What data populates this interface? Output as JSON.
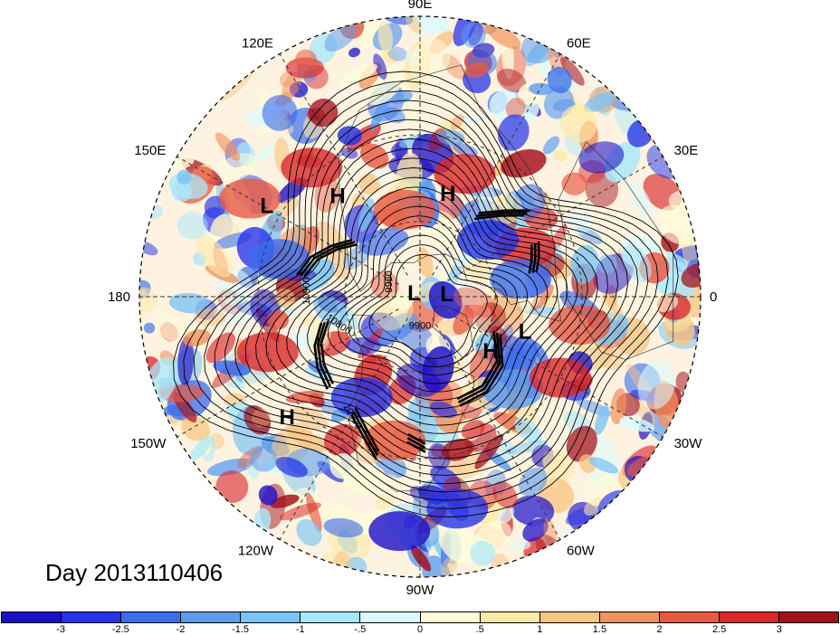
{
  "map": {
    "type": "north-polar-stereographic",
    "longitude_labels": [
      {
        "text": "90E",
        "lon": 90
      },
      {
        "text": "60E",
        "lon": 60
      },
      {
        "text": "30E",
        "lon": 30
      },
      {
        "text": "0",
        "lon": 0
      },
      {
        "text": "30W",
        "lon": -30
      },
      {
        "text": "60W",
        "lon": -60
      },
      {
        "text": "90W",
        "lon": -90
      },
      {
        "text": "120W",
        "lon": -120
      },
      {
        "text": "150W",
        "lon": -150
      },
      {
        "text": "180",
        "lon": 180
      },
      {
        "text": "150E",
        "lon": 150
      },
      {
        "text": "120E",
        "lon": 120
      }
    ],
    "pressure_centers": [
      {
        "type": "H",
        "lon": 75,
        "lat": 48
      },
      {
        "type": "L",
        "lon": 149,
        "lat": 25
      },
      {
        "type": "H",
        "lon": 129,
        "lat": 40
      },
      {
        "type": "L",
        "lon": 144,
        "lat": 87
      },
      {
        "type": "L",
        "lon": 8,
        "lat": 79
      },
      {
        "type": "H",
        "lon": -37,
        "lat": 55
      },
      {
        "type": "L",
        "lon": -18,
        "lat": 47
      },
      {
        "type": "H",
        "lon": -138,
        "lat": 25
      }
    ],
    "contour_labels": [
      {
        "text": "10900",
        "lon": 177,
        "lat": 47,
        "rotate": -90
      },
      {
        "text": "9960",
        "lon": 152,
        "lat": 77,
        "rotate": -90
      },
      {
        "text": "10800",
        "lon": -160,
        "lat": 55,
        "rotate": 35
      },
      {
        "text": "9900",
        "lon": -90,
        "lat": 77,
        "rotate": 0
      },
      {
        "text": "10900",
        "lon": -120,
        "lat": 37,
        "rotate": 60
      }
    ]
  },
  "title": "Day 2013110406",
  "colorbar": {
    "colors": [
      "#1d0fc9",
      "#2633e8",
      "#3b6ded",
      "#5b9cf0",
      "#79c4f4",
      "#a8e8fb",
      "#dafafe",
      "#fefcd8",
      "#fde9a8",
      "#f9c584",
      "#f1925e",
      "#e85a43",
      "#d9282c",
      "#a5101d"
    ],
    "tick_labels": [
      "-3",
      "-2.5",
      "-2",
      "-1.5",
      "-1",
      "-.5",
      "0",
      ".5",
      "1",
      "1.5",
      "2",
      "2.5",
      "3"
    ]
  }
}
